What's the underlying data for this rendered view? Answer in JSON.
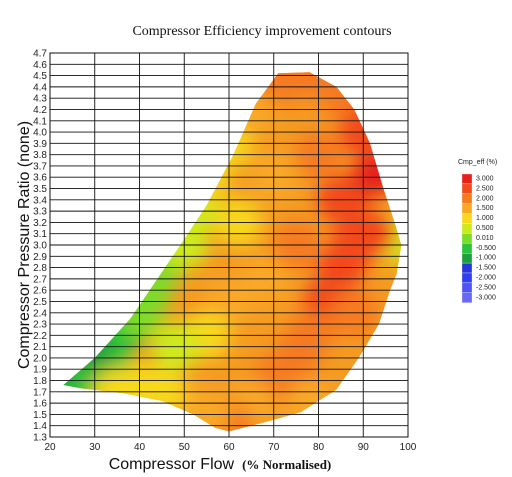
{
  "chart_data": {
    "type": "heatmap",
    "title": "Compressor Efficiency improvement contours",
    "xlabel": "Compressor Flow",
    "xlabel_suffix": "(% Normalised)",
    "ylabel": "Compressor Pressure Ratio (none)",
    "xlim": [
      20,
      100
    ],
    "ylim": [
      1.3,
      4.7
    ],
    "x_ticks": [
      "20",
      "30",
      "40",
      "50",
      "60",
      "70",
      "80",
      "90",
      "100"
    ],
    "y_ticks": [
      "1.3",
      "1.4",
      "1.5",
      "1.6",
      "1.7",
      "1.8",
      "1.9",
      "2.0",
      "2.1",
      "2.2",
      "2.3",
      "2.4",
      "2.5",
      "2.6",
      "2.7",
      "2.8",
      "2.9",
      "3.0",
      "3.1",
      "3.2",
      "3.3",
      "3.4",
      "3.5",
      "3.6",
      "3.7",
      "3.8",
      "3.9",
      "4.0",
      "4.1",
      "4.2",
      "4.3",
      "4.4",
      "4.5",
      "4.6",
      "4.7"
    ],
    "grid": true,
    "legend": {
      "title": "Cmp_eff (%)",
      "placement": "right",
      "entries": [
        {
          "label": "3.000",
          "color": "#e8201a"
        },
        {
          "label": "2.500",
          "color": "#f24a1c"
        },
        {
          "label": "2.000",
          "color": "#f57a20"
        },
        {
          "label": "1.500",
          "color": "#f9a825"
        },
        {
          "label": "1.000",
          "color": "#f7d81e"
        },
        {
          "label": "0.500",
          "color": "#cdeb1c"
        },
        {
          "label": "0.010",
          "color": "#7ddc2a"
        },
        {
          "label": "-0.500",
          "color": "#2cc23a"
        },
        {
          "label": "-1.000",
          "color": "#1f9e3f"
        },
        {
          "label": "-1.500",
          "color": "#2537d9"
        },
        {
          "label": "-2.000",
          "color": "#2e3ef2"
        },
        {
          "label": "-2.500",
          "color": "#4b55f5"
        },
        {
          "label": "-3.000",
          "color": "#6a66f7"
        }
      ]
    },
    "series": [
      {
        "values": [
          {
            "x": 23,
            "y": 1.78,
            "z": -1.0
          },
          {
            "x": 28,
            "y": 1.85,
            "z": -0.7
          },
          {
            "x": 33,
            "y": 1.95,
            "z": -0.5
          },
          {
            "x": 30,
            "y": 2.1,
            "z": -0.8
          },
          {
            "x": 36,
            "y": 2.25,
            "z": -0.3
          },
          {
            "x": 40,
            "y": 2.4,
            "z": -0.2
          },
          {
            "x": 42,
            "y": 2.6,
            "z": 0.0
          },
          {
            "x": 45,
            "y": 2.85,
            "z": 0.2
          },
          {
            "x": 50,
            "y": 3.0,
            "z": 0.4
          },
          {
            "x": 52,
            "y": 3.3,
            "z": 0.6
          },
          {
            "x": 55,
            "y": 3.6,
            "z": 0.8
          },
          {
            "x": 60,
            "y": 3.9,
            "z": 1.0
          },
          {
            "x": 65,
            "y": 4.2,
            "z": 1.4
          },
          {
            "x": 72,
            "y": 4.45,
            "z": 1.8
          },
          {
            "x": 80,
            "y": 4.5,
            "z": 2.0
          },
          {
            "x": 86,
            "y": 4.3,
            "z": 2.1
          },
          {
            "x": 90,
            "y": 4.0,
            "z": 2.4
          },
          {
            "x": 93,
            "y": 3.6,
            "z": 2.8
          },
          {
            "x": 91,
            "y": 3.5,
            "z": 3.0
          },
          {
            "x": 95,
            "y": 3.2,
            "z": 1.5
          },
          {
            "x": 97,
            "y": 3.05,
            "z": 0.3
          },
          {
            "x": 92,
            "y": 3.1,
            "z": 2.7
          },
          {
            "x": 88,
            "y": 3.0,
            "z": 2.6
          },
          {
            "x": 85,
            "y": 2.8,
            "z": 2.4
          },
          {
            "x": 82,
            "y": 2.5,
            "z": 2.6
          },
          {
            "x": 78,
            "y": 2.2,
            "z": 2.2
          },
          {
            "x": 75,
            "y": 2.0,
            "z": 2.0
          },
          {
            "x": 70,
            "y": 1.8,
            "z": 1.8
          },
          {
            "x": 65,
            "y": 1.6,
            "z": 1.6
          },
          {
            "x": 60,
            "y": 1.4,
            "z": 1.9
          },
          {
            "x": 55,
            "y": 1.5,
            "z": 1.4
          },
          {
            "x": 50,
            "y": 1.6,
            "z": 1.3
          },
          {
            "x": 45,
            "y": 1.7,
            "z": 1.1
          },
          {
            "x": 40,
            "y": 1.75,
            "z": 1.0
          },
          {
            "x": 35,
            "y": 1.7,
            "z": 0.9
          },
          {
            "x": 60,
            "y": 2.5,
            "z": 1.5
          },
          {
            "x": 62,
            "y": 3.2,
            "z": 1.2
          },
          {
            "x": 70,
            "y": 3.6,
            "z": 1.6
          },
          {
            "x": 75,
            "y": 3.0,
            "z": 1.8
          },
          {
            "x": 68,
            "y": 2.7,
            "z": 1.7
          },
          {
            "x": 55,
            "y": 2.2,
            "z": 1.2
          },
          {
            "x": 48,
            "y": 2.1,
            "z": 0.6
          },
          {
            "x": 80,
            "y": 3.8,
            "z": 2.2
          },
          {
            "x": 85,
            "y": 3.4,
            "z": 2.5
          },
          {
            "x": 88,
            "y": 2.4,
            "z": 2.0
          },
          {
            "x": 78,
            "y": 1.6,
            "z": 1.7
          }
        ]
      }
    ]
  }
}
